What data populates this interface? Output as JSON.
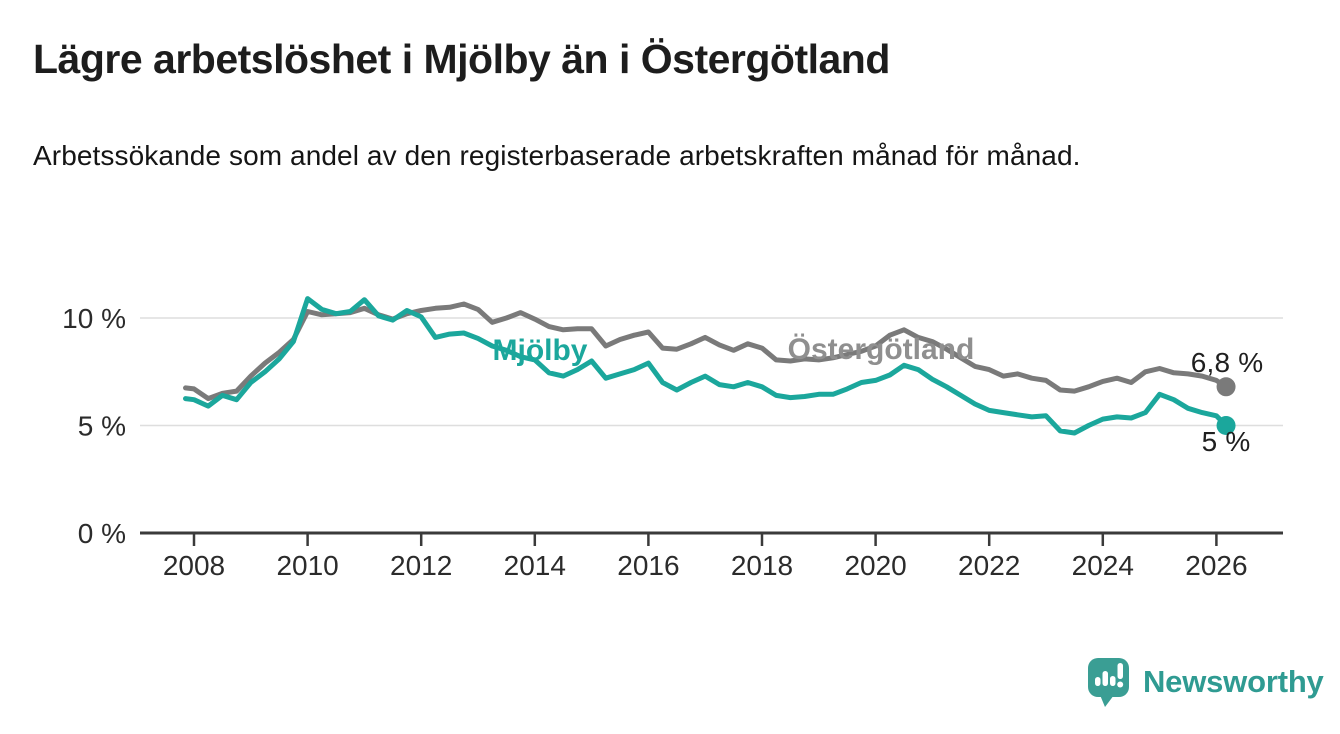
{
  "header": {
    "title": "Lägre arbetslöshet i Mjölby än i Östergötland",
    "subtitle": "Arbetssökande som andel av den registerbaserade arbetskraften månad för månad."
  },
  "chart_data": {
    "type": "line",
    "title": "Lägre arbetslöshet i Mjölby än i Östergötland",
    "subtitle": "Arbetssökande som andel av den registerbaserade arbetskraften månad för månad.",
    "unit": "percent",
    "grid": "horizontal-only",
    "legend_position": "inline-labels",
    "x_axis": {
      "ticks": [
        {
          "value": 2008,
          "label": "2008"
        },
        {
          "value": 2010,
          "label": "2010"
        },
        {
          "value": 2012,
          "label": "2012"
        },
        {
          "value": 2014,
          "label": "2014"
        },
        {
          "value": 2016,
          "label": "2016"
        },
        {
          "value": 2018,
          "label": "2018"
        },
        {
          "value": 2020,
          "label": "2020"
        },
        {
          "value": 2022,
          "label": "2022"
        },
        {
          "value": 2024,
          "label": "2024"
        },
        {
          "value": 2026,
          "label": "2026"
        }
      ],
      "range": [
        2007.0,
        2027.2
      ]
    },
    "y_axis": {
      "ticks": [
        {
          "value": 0,
          "label": "0 %"
        },
        {
          "value": 5,
          "label": "5 %"
        },
        {
          "value": 10,
          "label": "10 %"
        }
      ],
      "range": [
        0,
        11.3
      ]
    },
    "x": [
      2007.85,
      2008.0,
      2008.25,
      2008.5,
      2008.75,
      2009.0,
      2009.25,
      2009.5,
      2009.75,
      2010.0,
      2010.25,
      2010.5,
      2010.75,
      2011.0,
      2011.25,
      2011.5,
      2011.75,
      2012.0,
      2012.25,
      2012.5,
      2012.75,
      2013.0,
      2013.25,
      2013.5,
      2013.75,
      2014.0,
      2014.25,
      2014.5,
      2014.75,
      2015.0,
      2015.25,
      2015.5,
      2015.75,
      2016.0,
      2016.25,
      2016.5,
      2016.75,
      2017.0,
      2017.25,
      2017.5,
      2017.75,
      2018.0,
      2018.25,
      2018.5,
      2018.75,
      2019.0,
      2019.25,
      2019.5,
      2019.75,
      2020.0,
      2020.25,
      2020.5,
      2020.75,
      2021.0,
      2021.25,
      2021.5,
      2021.75,
      2022.0,
      2022.25,
      2022.5,
      2022.75,
      2023.0,
      2023.25,
      2023.5,
      2023.75,
      2024.0,
      2024.25,
      2024.5,
      2024.75,
      2025.0,
      2025.25,
      2025.5,
      2025.75,
      2026.0,
      2026.17
    ],
    "series": [
      {
        "name": "Mjölby",
        "color": "#1ba79c",
        "label_color": "#1ba79c",
        "end_label": "5 %",
        "end_value": 5.0,
        "values": [
          6.25,
          6.2,
          5.9,
          6.4,
          6.2,
          7.0,
          7.5,
          8.1,
          8.9,
          10.9,
          10.4,
          10.2,
          10.3,
          10.85,
          10.1,
          9.9,
          10.35,
          10.05,
          9.1,
          9.25,
          9.3,
          9.05,
          8.7,
          8.5,
          8.2,
          8.05,
          7.45,
          7.3,
          7.6,
          8.0,
          7.2,
          7.4,
          7.6,
          7.9,
          7.0,
          6.65,
          7.0,
          7.3,
          6.9,
          6.8,
          7.0,
          6.8,
          6.4,
          6.3,
          6.35,
          6.45,
          6.45,
          6.7,
          7.0,
          7.1,
          7.35,
          7.8,
          7.6,
          7.15,
          6.8,
          6.4,
          6.0,
          5.7,
          5.6,
          5.5,
          5.4,
          5.45,
          4.75,
          4.65,
          5.0,
          5.3,
          5.4,
          5.35,
          5.6,
          6.45,
          6.2,
          5.8,
          5.6,
          5.45,
          5.0
        ]
      },
      {
        "name": "Östergötland",
        "color": "#7a7a7a",
        "label_color": "#8f8f8f",
        "end_label": "6,8 %",
        "end_value": 6.8,
        "values": [
          6.75,
          6.7,
          6.25,
          6.5,
          6.6,
          7.3,
          7.9,
          8.4,
          9.0,
          10.3,
          10.15,
          10.2,
          10.25,
          10.45,
          10.15,
          9.95,
          10.2,
          10.35,
          10.45,
          10.5,
          10.65,
          10.4,
          9.8,
          10.0,
          10.25,
          9.95,
          9.6,
          9.45,
          9.5,
          9.5,
          8.7,
          9.0,
          9.2,
          9.35,
          8.6,
          8.55,
          8.8,
          9.1,
          8.75,
          8.5,
          8.8,
          8.6,
          8.05,
          8.0,
          8.1,
          8.05,
          8.15,
          8.3,
          8.45,
          8.7,
          9.2,
          9.45,
          9.1,
          8.9,
          8.55,
          8.15,
          7.75,
          7.6,
          7.3,
          7.4,
          7.2,
          7.1,
          6.65,
          6.6,
          6.8,
          7.05,
          7.2,
          7.0,
          7.5,
          7.65,
          7.45,
          7.4,
          7.3,
          7.1,
          6.8
        ]
      }
    ],
    "colors": {
      "grid_line": "#dedede",
      "axis_line": "#3a3a3a",
      "axis_text": "#2b2b2b"
    }
  },
  "footer": {
    "brand": "Newsworthy",
    "brand_color": "#2f9b92",
    "logo_color": "#3a9e94"
  }
}
